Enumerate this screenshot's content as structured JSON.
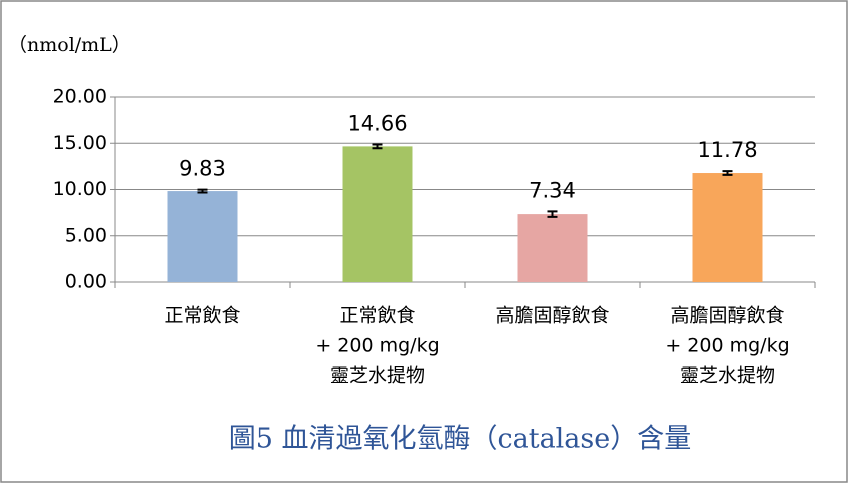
{
  "chart_data": {
    "type": "bar",
    "title": "圖5  血清過氧化氫酶（catalase）含量",
    "y_label": "（nmol/mL）",
    "categories": [
      [
        "正常飲食"
      ],
      [
        "正常飲食",
        "+ 200 mg/kg",
        "靈芝水提物"
      ],
      [
        "高膽固醇飲食"
      ],
      [
        "高膽固醇飲食",
        "+ 200 mg/kg",
        "靈芝水提物"
      ]
    ],
    "values": [
      9.83,
      14.66,
      7.34,
      11.78
    ],
    "errors": [
      0.15,
      0.2,
      0.3,
      0.2
    ],
    "colors": [
      "#95b3d7",
      "#a5c464",
      "#e6a6a3",
      "#f8a65a"
    ],
    "ylim": [
      0,
      20
    ],
    "yticks": [
      {
        "value": 0,
        "label": "0.00"
      },
      {
        "value": 5,
        "label": "5.00"
      },
      {
        "value": 10,
        "label": "10.00"
      },
      {
        "value": 15,
        "label": "15.00"
      },
      {
        "value": 20,
        "label": "20.00"
      }
    ],
    "grid": true
  }
}
